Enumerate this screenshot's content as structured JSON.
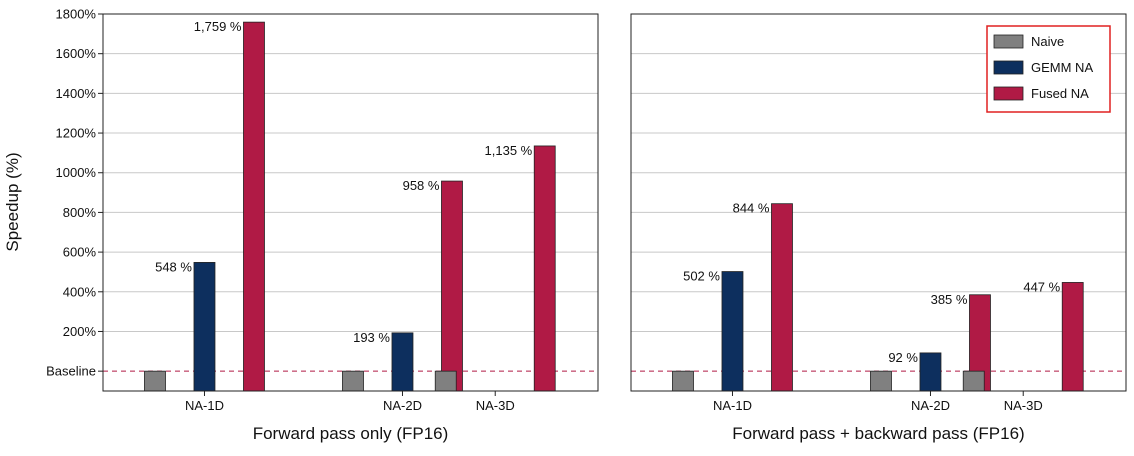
{
  "chart_data": [
    {
      "type": "bar",
      "title": "",
      "xlabel": "Forward pass only (FP16)",
      "ylabel": "Speedup (%)",
      "baseline_label": "Baseline",
      "ylim": [
        -100,
        1800
      ],
      "yticks": [
        200,
        400,
        600,
        800,
        1000,
        1200,
        1400,
        1600,
        1800
      ],
      "ytick_labels": [
        "200%",
        "400%",
        "600%",
        "800%",
        "1000%",
        "1200%",
        "1400%",
        "1600%",
        "1800%"
      ],
      "grid": true,
      "categories": [
        "NA-1D",
        "NA-2D",
        "NA-3D"
      ],
      "series": [
        {
          "name": "Naive",
          "color": "#808080",
          "values": [
            0,
            0,
            0
          ],
          "labels": [
            "",
            "",
            ""
          ]
        },
        {
          "name": "GEMM NA",
          "color": "#0d2f5e",
          "values": [
            548,
            193,
            null
          ],
          "labels": [
            "548 %",
            "193 %",
            ""
          ]
        },
        {
          "name": "Fused NA",
          "color": "#b01a45",
          "values": [
            1759,
            958,
            1135
          ],
          "labels": [
            "1,759 %",
            "958 %",
            "1,135 %"
          ]
        }
      ]
    },
    {
      "type": "bar",
      "title": "",
      "xlabel": "Forward pass + backward pass (FP16)",
      "ylabel": "",
      "ylim": [
        -100,
        1800
      ],
      "yticks": [
        200,
        400,
        600,
        800,
        1000,
        1200,
        1400,
        1600,
        1800
      ],
      "grid": true,
      "legend_position": "top-right",
      "categories": [
        "NA-1D",
        "NA-2D",
        "NA-3D"
      ],
      "series": [
        {
          "name": "Naive",
          "color": "#808080",
          "values": [
            0,
            0,
            0
          ],
          "labels": [
            "",
            "",
            ""
          ]
        },
        {
          "name": "GEMM NA",
          "color": "#0d2f5e",
          "values": [
            502,
            92,
            null
          ],
          "labels": [
            "502 %",
            "92 %",
            ""
          ]
        },
        {
          "name": "Fused NA",
          "color": "#b01a45",
          "values": [
            844,
            385,
            447
          ],
          "labels": [
            "844 %",
            "385 %",
            "447 %"
          ]
        }
      ]
    }
  ],
  "colors": {
    "grid": "#c8c8c8",
    "baseline": "#b01a45",
    "legend_border": "#e02020",
    "bar_edge": "#222222"
  }
}
